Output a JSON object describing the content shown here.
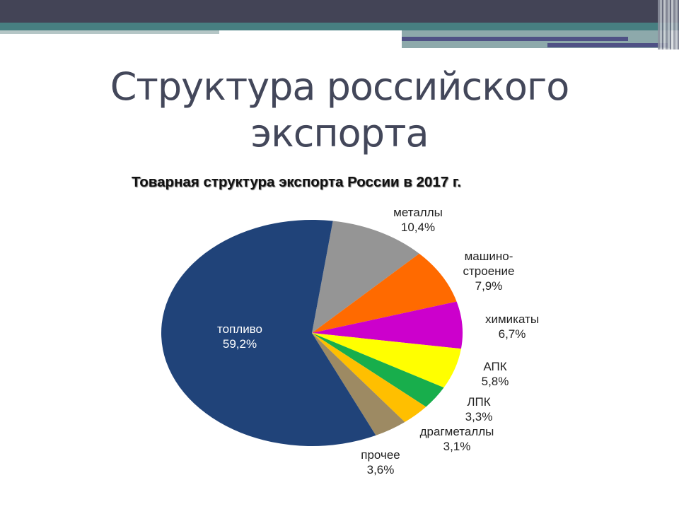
{
  "slide": {
    "title_line1": "Структура российского",
    "title_line2": "экспорта",
    "theme": {
      "topbar": "#434456",
      "tealbar": "#477f81",
      "accent": "#4f5185"
    }
  },
  "chart_data": {
    "type": "pie",
    "title": "Товарная структура экспорта России в 2017 г.",
    "unit": "%",
    "start_angle_deg": 8,
    "direction": "clockwise",
    "categories": [
      "металлы",
      "машино-строение",
      "химикаты",
      "АПК",
      "ЛПК",
      "драгметаллы",
      "прочее",
      "топливо"
    ],
    "values": [
      10.4,
      7.9,
      6.7,
      5.8,
      3.3,
      3.1,
      3.6,
      59.2
    ],
    "slices": [
      {
        "name": "металлы",
        "value": 10.4,
        "label_value": "10,4%",
        "color": "#959595"
      },
      {
        "name": "машино-строение",
        "value": 7.9,
        "label_value": "7,9%",
        "color": "#ff6a00"
      },
      {
        "name": "химикаты",
        "value": 6.7,
        "label_value": "6,7%",
        "color": "#cc00cc"
      },
      {
        "name": "АПК",
        "value": 5.8,
        "label_value": "5,8%",
        "color": "#ffff00"
      },
      {
        "name": "ЛПК",
        "value": 3.3,
        "label_value": "3,3%",
        "color": "#18ae4c"
      },
      {
        "name": "драгметаллы",
        "value": 3.1,
        "label_value": "3,1%",
        "color": "#ffbf00"
      },
      {
        "name": "прочее",
        "value": 3.6,
        "label_value": "3,6%",
        "color": "#9d8a63"
      },
      {
        "name": "топливо",
        "value": 59.2,
        "label_value": "59,2%",
        "color": "#204379"
      }
    ],
    "labels": [
      {
        "line1": "металлы",
        "line2": "10,4%"
      },
      {
        "line1": "машино-",
        "line2": "строение",
        "line3": "7,9%"
      },
      {
        "line1": "химикаты",
        "line2": "6,7%"
      },
      {
        "line1": "АПК",
        "line2": "5,8%"
      },
      {
        "line1": "ЛПК",
        "line2": "3,3%"
      },
      {
        "line1": "драгметаллы",
        "line2": "3,1%"
      },
      {
        "line1": "прочее",
        "line2": "3,6%"
      },
      {
        "line1": "топливо",
        "line2": "59,2%"
      }
    ],
    "legend": "none (labels placed beside slices)"
  }
}
